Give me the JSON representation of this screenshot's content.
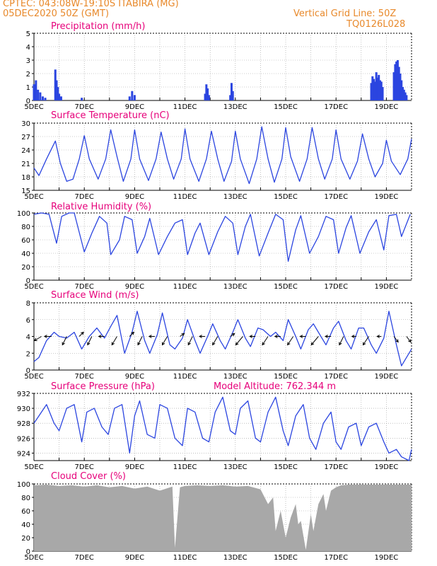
{
  "header": {
    "left_line1": "CPTEC:   043:08W-19:10S   ITABIRA (MG)",
    "left_line2": "05DEC2020 50Z (GMT)",
    "right_line1": "Vertical Grid Line: 50Z",
    "right_line2": "TQ0126L028"
  },
  "colors": {
    "header": "#e8892b",
    "title": "#e6007a",
    "series": "#2b45e0",
    "cloud": "#a8a8a8"
  },
  "x_tick_labels": [
    "5DEC",
    "7DEC",
    "9DEC",
    "11DEC",
    "13DEC",
    "15DEC",
    "17DEC",
    "19DEC"
  ],
  "chart_data": [
    {
      "id": "precip",
      "type": "bar",
      "title": "Precipitation (mm/h)",
      "ylim": [
        0,
        5
      ],
      "yticks": [
        0,
        1,
        2,
        3,
        4,
        5
      ],
      "xlim": [
        5,
        20
      ],
      "bars": [
        [
          5.0,
          1.2
        ],
        [
          5.08,
          1.5
        ],
        [
          5.16,
          0.8
        ],
        [
          5.25,
          0.6
        ],
        [
          5.35,
          0.3
        ],
        [
          5.45,
          0.2
        ],
        [
          5.85,
          2.3
        ],
        [
          5.9,
          1.5
        ],
        [
          5.95,
          1.0
        ],
        [
          6.0,
          0.5
        ],
        [
          6.08,
          0.3
        ],
        [
          6.9,
          0.2
        ],
        [
          8.8,
          0.3
        ],
        [
          8.9,
          0.7
        ],
        [
          9.0,
          0.4
        ],
        [
          11.8,
          0.5
        ],
        [
          11.85,
          1.2
        ],
        [
          11.9,
          0.9
        ],
        [
          11.95,
          0.4
        ],
        [
          12.8,
          0.4
        ],
        [
          12.85,
          1.3
        ],
        [
          12.9,
          0.7
        ],
        [
          18.4,
          1.3
        ],
        [
          18.45,
          1.8
        ],
        [
          18.5,
          1.6
        ],
        [
          18.55,
          1.4
        ],
        [
          18.6,
          2.1
        ],
        [
          18.65,
          1.7
        ],
        [
          18.7,
          1.9
        ],
        [
          18.75,
          1.5
        ],
        [
          18.8,
          1.4
        ],
        [
          18.85,
          1.0
        ],
        [
          19.3,
          2.1
        ],
        [
          19.35,
          2.7
        ],
        [
          19.4,
          2.9
        ],
        [
          19.45,
          3.0
        ],
        [
          19.5,
          2.5
        ],
        [
          19.55,
          2.0
        ],
        [
          19.6,
          1.5
        ],
        [
          19.65,
          1.0
        ],
        [
          19.7,
          0.8
        ],
        [
          19.75,
          0.6
        ],
        [
          19.8,
          0.4
        ]
      ]
    },
    {
      "id": "temp",
      "type": "line",
      "title": "Surface Temperature (nC)",
      "ylim": [
        15,
        30
      ],
      "yticks": [
        15,
        18,
        21,
        24,
        27,
        30
      ],
      "xlim": [
        5,
        20
      ],
      "x": [
        5.0,
        5.2,
        5.5,
        5.85,
        6.05,
        6.3,
        6.55,
        6.8,
        7.0,
        7.2,
        7.55,
        7.85,
        8.05,
        8.3,
        8.55,
        8.85,
        9.0,
        9.2,
        9.55,
        9.85,
        10.05,
        10.3,
        10.55,
        10.85,
        11.0,
        11.2,
        11.55,
        11.85,
        12.05,
        12.3,
        12.55,
        12.85,
        13.0,
        13.2,
        13.55,
        13.85,
        14.05,
        14.3,
        14.55,
        14.85,
        15.0,
        15.2,
        15.55,
        15.85,
        16.05,
        16.3,
        16.55,
        16.85,
        17.0,
        17.2,
        17.55,
        17.85,
        18.05,
        18.3,
        18.55,
        18.85,
        19.0,
        19.2,
        19.55,
        19.85,
        20.0
      ],
      "y": [
        20.0,
        18.3,
        22.0,
        26.0,
        21.0,
        17.0,
        17.5,
        22.0,
        27.2,
        22.0,
        17.5,
        22.0,
        28.5,
        22.5,
        17.0,
        22.0,
        28.5,
        22.0,
        17.2,
        22.0,
        28.0,
        22.0,
        17.5,
        22.0,
        28.7,
        22.0,
        17.0,
        22.0,
        28.2,
        22.0,
        17.0,
        21.5,
        28.2,
        22.0,
        16.5,
        22.0,
        29.2,
        22.0,
        16.8,
        22.0,
        29.0,
        22.5,
        17.0,
        22.0,
        29.0,
        22.0,
        17.5,
        22.0,
        28.5,
        22.0,
        17.5,
        21.5,
        27.6,
        22.0,
        18.0,
        21.0,
        26.2,
        21.5,
        18.5,
        22.0,
        26.5
      ]
    },
    {
      "id": "rh",
      "type": "line",
      "title": "Relative Humidity (%)",
      "ylim": [
        0,
        100
      ],
      "yticks": [
        0,
        20,
        40,
        60,
        80,
        100
      ],
      "xlim": [
        5,
        20
      ],
      "x": [
        5.0,
        5.3,
        5.6,
        5.9,
        6.1,
        6.4,
        6.6,
        7.0,
        7.3,
        7.6,
        7.9,
        8.05,
        8.4,
        8.6,
        8.9,
        9.1,
        9.4,
        9.6,
        9.95,
        10.3,
        10.6,
        10.9,
        11.1,
        11.4,
        11.6,
        11.95,
        12.3,
        12.6,
        12.9,
        13.1,
        13.4,
        13.6,
        13.95,
        14.3,
        14.6,
        14.9,
        15.1,
        15.4,
        15.6,
        15.95,
        16.3,
        16.6,
        16.9,
        17.1,
        17.4,
        17.6,
        17.95,
        18.3,
        18.6,
        18.9,
        19.1,
        19.4,
        19.6,
        19.95
      ],
      "y": [
        98,
        100,
        98,
        55,
        95,
        100,
        100,
        42,
        70,
        95,
        85,
        38,
        60,
        95,
        90,
        40,
        65,
        92,
        38,
        65,
        85,
        90,
        38,
        70,
        85,
        38,
        72,
        95,
        85,
        38,
        80,
        98,
        36,
        70,
        98,
        90,
        28,
        75,
        96,
        40,
        65,
        95,
        90,
        40,
        78,
        96,
        40,
        72,
        90,
        45,
        96,
        98,
        65,
        98
      ]
    },
    {
      "id": "wind",
      "type": "line",
      "title": "Surface Wind (m/s)",
      "ylim": [
        0,
        8
      ],
      "yticks": [
        0,
        2,
        4,
        6,
        8
      ],
      "xlim": [
        5,
        20
      ],
      "x": [
        5.0,
        5.2,
        5.5,
        5.8,
        6.0,
        6.3,
        6.6,
        6.9,
        7.2,
        7.5,
        7.8,
        8.05,
        8.3,
        8.6,
        8.9,
        9.1,
        9.4,
        9.6,
        9.9,
        10.1,
        10.4,
        10.6,
        10.9,
        11.1,
        11.4,
        11.6,
        11.9,
        12.1,
        12.4,
        12.6,
        12.9,
        13.1,
        13.4,
        13.6,
        13.9,
        14.1,
        14.4,
        14.6,
        14.9,
        15.1,
        15.4,
        15.6,
        15.9,
        16.1,
        16.4,
        16.6,
        16.9,
        17.1,
        17.4,
        17.6,
        17.9,
        18.1,
        18.4,
        18.6,
        18.9,
        19.1,
        19.4,
        19.6,
        19.9,
        20.0
      ],
      "y": [
        1.0,
        1.5,
        3.5,
        4.5,
        4.0,
        3.8,
        4.5,
        2.5,
        4.0,
        5.0,
        3.8,
        5.2,
        6.5,
        2.0,
        4.5,
        7.0,
        3.5,
        2.0,
        4.2,
        6.8,
        3.0,
        2.5,
        3.8,
        6.0,
        3.5,
        2.0,
        4.0,
        5.5,
        3.5,
        2.5,
        4.5,
        6.0,
        3.8,
        2.8,
        5.0,
        4.8,
        4.0,
        4.5,
        3.5,
        6.0,
        4.0,
        2.5,
        4.8,
        5.5,
        4.0,
        3.0,
        5.0,
        5.8,
        3.5,
        2.5,
        5.0,
        5.0,
        3.0,
        2.0,
        3.8,
        7.0,
        3.0,
        0.5,
        2.0,
        2.5
      ],
      "arrow_x": [
        5.3,
        5.7,
        6.3,
        6.8,
        7.3,
        7.8,
        8.3,
        8.8,
        9.3,
        9.8,
        10.3,
        10.8,
        11.3,
        11.8,
        12.3,
        12.8,
        13.3,
        13.8,
        14.3,
        14.8,
        15.3,
        15.8,
        16.3,
        16.8,
        17.3,
        17.8,
        18.3,
        18.8,
        19.3,
        19.8
      ],
      "arrow_u": [
        -2.5,
        -2.5,
        -1.5,
        1.5,
        -1.5,
        -2.0,
        -1.8,
        1.5,
        -1.5,
        -2.0,
        -1.8,
        1.5,
        -1.5,
        -2.0,
        -1.8,
        1.5,
        -2.5,
        -2.0,
        -2.0,
        -2.0,
        -2.0,
        -2.0,
        -2.5,
        -2.0,
        -1.5,
        -1.5,
        -2.0,
        -1.5,
        1.5,
        1.5
      ],
      "arrow_v": [
        -1.5,
        0.0,
        -3.0,
        1.5,
        -3.0,
        0.0,
        -3.0,
        1.5,
        -3.0,
        0.0,
        -3.0,
        1.0,
        -3.0,
        0.0,
        -3.0,
        1.0,
        -3.0,
        0.0,
        -3.0,
        0.0,
        -3.0,
        0.0,
        -3.0,
        0.0,
        -3.0,
        0.0,
        -3.0,
        0.0,
        -2.0,
        -2.0
      ]
    },
    {
      "id": "pressure",
      "type": "line",
      "title": "Surface Pressure (hPa)",
      "extra": "Model Altitude: 762.344 m",
      "ylim": [
        923,
        932
      ],
      "yticks": [
        924,
        926,
        928,
        930,
        932
      ],
      "xlim": [
        5,
        20
      ],
      "x": [
        5.0,
        5.2,
        5.5,
        5.8,
        6.0,
        6.3,
        6.6,
        6.9,
        7.1,
        7.4,
        7.7,
        7.95,
        8.2,
        8.5,
        8.8,
        9.0,
        9.2,
        9.5,
        9.8,
        10.0,
        10.3,
        10.6,
        10.9,
        11.1,
        11.4,
        11.7,
        11.95,
        12.2,
        12.5,
        12.8,
        13.0,
        13.2,
        13.5,
        13.8,
        14.0,
        14.3,
        14.6,
        14.9,
        15.1,
        15.4,
        15.7,
        15.95,
        16.2,
        16.5,
        16.8,
        17.0,
        17.2,
        17.5,
        17.8,
        18.0,
        18.3,
        18.6,
        18.9,
        19.1,
        19.4,
        19.6,
        19.9,
        20.0
      ],
      "y": [
        928.0,
        929.0,
        930.5,
        928.0,
        927.0,
        930.0,
        930.5,
        925.5,
        929.5,
        930.0,
        927.5,
        926.5,
        930.0,
        930.5,
        924.0,
        929.0,
        931.0,
        926.5,
        926.0,
        930.5,
        930.0,
        926.0,
        925.0,
        930.0,
        929.5,
        926.0,
        925.5,
        929.5,
        931.5,
        927.0,
        926.5,
        930.0,
        931.0,
        926.0,
        925.5,
        929.5,
        931.5,
        927.0,
        925.0,
        929.0,
        930.5,
        926.0,
        924.5,
        928.0,
        929.5,
        925.5,
        924.5,
        927.5,
        928.0,
        925.0,
        927.5,
        928.0,
        925.5,
        924.0,
        924.5,
        923.5,
        922.5,
        924.5
      ]
    },
    {
      "id": "cloud",
      "type": "area",
      "title": "Cloud Cover (%)",
      "ylim": [
        0,
        100
      ],
      "yticks": [
        0,
        20,
        40,
        60,
        80,
        100
      ],
      "xlim": [
        5,
        20
      ],
      "x": [
        5.0,
        5.5,
        6.0,
        6.5,
        7.0,
        7.5,
        8.0,
        8.5,
        9.0,
        9.5,
        10.0,
        10.5,
        10.6,
        10.8,
        11.0,
        11.5,
        12.0,
        12.5,
        13.0,
        13.5,
        14.0,
        14.3,
        14.5,
        14.6,
        14.8,
        15.0,
        15.2,
        15.4,
        15.5,
        15.6,
        15.8,
        16.0,
        16.1,
        16.3,
        16.5,
        16.6,
        16.8,
        17.0,
        17.2,
        17.5,
        18.0,
        18.5,
        19.0,
        19.5,
        20.0
      ],
      "y": [
        98,
        99,
        97,
        98,
        96,
        98,
        95,
        97,
        93,
        96,
        90,
        96,
        5,
        95,
        97,
        98,
        97,
        98,
        96,
        97,
        92,
        70,
        80,
        30,
        60,
        20,
        50,
        70,
        40,
        45,
        2,
        55,
        30,
        70,
        85,
        60,
        90,
        95,
        98,
        99,
        99,
        99,
        99,
        99,
        99
      ]
    }
  ]
}
